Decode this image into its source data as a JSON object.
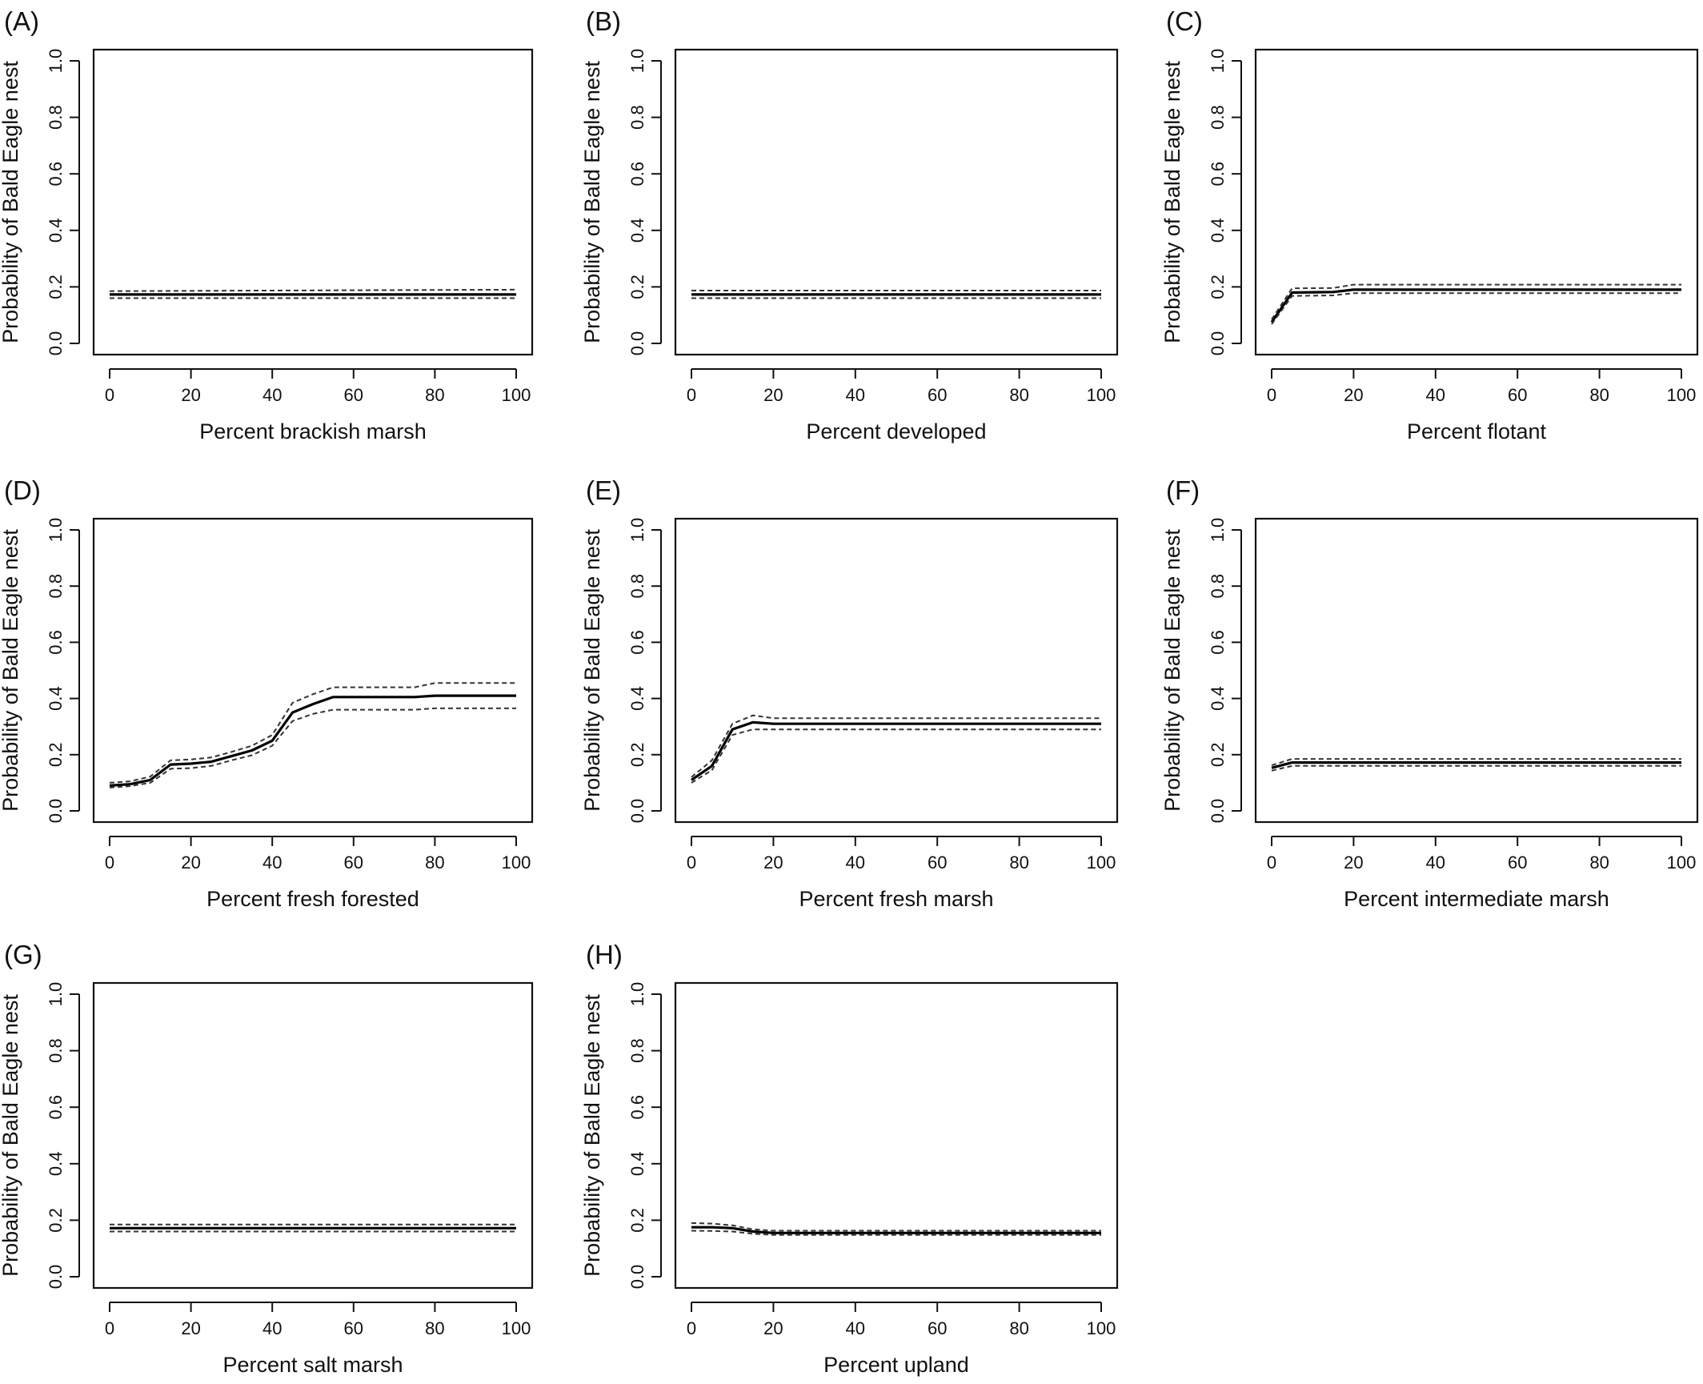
{
  "chart_data": [
    {
      "panel": "(A)",
      "type": "line",
      "xlabel": "Percent brackish marsh",
      "ylabel": "Probability of Bald Eagle nest",
      "xlim": [
        0,
        100
      ],
      "ylim": [
        0,
        1
      ],
      "xticks": [
        0,
        20,
        40,
        60,
        80,
        100
      ],
      "yticks": [
        "0.0",
        "0.2",
        "0.4",
        "0.6",
        "0.8",
        "1.0"
      ],
      "grid": false,
      "x": [
        0,
        100
      ],
      "series": [
        {
          "role": "estimate",
          "values": [
            0.173,
            0.173
          ]
        },
        {
          "role": "upper",
          "values": [
            0.185,
            0.19
          ]
        },
        {
          "role": "lower",
          "values": [
            0.16,
            0.16
          ]
        }
      ]
    },
    {
      "panel": "(B)",
      "type": "line",
      "xlabel": "Percent developed",
      "ylabel": "Probability of Bald Eagle nest",
      "xlim": [
        0,
        100
      ],
      "ylim": [
        0,
        1
      ],
      "xticks": [
        0,
        20,
        40,
        60,
        80,
        100
      ],
      "yticks": [
        "0.0",
        "0.2",
        "0.4",
        "0.6",
        "0.8",
        "1.0"
      ],
      "grid": false,
      "x": [
        0,
        100
      ],
      "series": [
        {
          "role": "estimate",
          "values": [
            0.173,
            0.173
          ]
        },
        {
          "role": "upper",
          "values": [
            0.187,
            0.187
          ]
        },
        {
          "role": "lower",
          "values": [
            0.16,
            0.16
          ]
        }
      ]
    },
    {
      "panel": "(C)",
      "type": "line",
      "xlabel": "Percent flotant",
      "ylabel": "Probability of Bald Eagle nest",
      "xlim": [
        0,
        100
      ],
      "ylim": [
        0,
        1
      ],
      "xticks": [
        0,
        20,
        40,
        60,
        80,
        100
      ],
      "yticks": [
        "0.0",
        "0.2",
        "0.4",
        "0.6",
        "0.8",
        "1.0"
      ],
      "grid": false,
      "x": [
        0,
        5,
        15,
        20,
        100
      ],
      "series": [
        {
          "role": "estimate",
          "values": [
            0.075,
            0.18,
            0.182,
            0.19,
            0.19
          ]
        },
        {
          "role": "upper",
          "values": [
            0.085,
            0.195,
            0.196,
            0.208,
            0.208
          ]
        },
        {
          "role": "lower",
          "values": [
            0.068,
            0.168,
            0.17,
            0.178,
            0.178
          ]
        }
      ]
    },
    {
      "panel": "(D)",
      "type": "line",
      "xlabel": "Percent fresh forested",
      "ylabel": "Probability of Bald Eagle nest",
      "xlim": [
        0,
        100
      ],
      "ylim": [
        0,
        1
      ],
      "xticks": [
        0,
        20,
        40,
        60,
        80,
        100
      ],
      "yticks": [
        "0.0",
        "0.2",
        "0.4",
        "0.6",
        "0.8",
        "1.0"
      ],
      "grid": false,
      "x": [
        0,
        5,
        10,
        15,
        20,
        25,
        30,
        35,
        40,
        45,
        50,
        55,
        60,
        65,
        70,
        75,
        80,
        85,
        90,
        95,
        100
      ],
      "series": [
        {
          "role": "estimate",
          "values": [
            0.09,
            0.095,
            0.11,
            0.165,
            0.168,
            0.175,
            0.195,
            0.215,
            0.25,
            0.35,
            0.38,
            0.405,
            0.405,
            0.405,
            0.405,
            0.405,
            0.41,
            0.41,
            0.41,
            0.41,
            0.41
          ]
        },
        {
          "role": "upper",
          "values": [
            0.1,
            0.105,
            0.122,
            0.18,
            0.183,
            0.19,
            0.21,
            0.232,
            0.27,
            0.385,
            0.415,
            0.44,
            0.44,
            0.44,
            0.44,
            0.44,
            0.455,
            0.455,
            0.455,
            0.455,
            0.455
          ]
        },
        {
          "role": "lower",
          "values": [
            0.083,
            0.088,
            0.1,
            0.15,
            0.152,
            0.16,
            0.18,
            0.198,
            0.232,
            0.32,
            0.345,
            0.36,
            0.36,
            0.36,
            0.36,
            0.36,
            0.365,
            0.365,
            0.365,
            0.365,
            0.365
          ]
        }
      ]
    },
    {
      "panel": "(E)",
      "type": "line",
      "xlabel": "Percent fresh marsh",
      "ylabel": "Probability of Bald Eagle nest",
      "xlim": [
        0,
        100
      ],
      "ylim": [
        0,
        1
      ],
      "xticks": [
        0,
        20,
        40,
        60,
        80,
        100
      ],
      "yticks": [
        "0.0",
        "0.2",
        "0.4",
        "0.6",
        "0.8",
        "1.0"
      ],
      "grid": false,
      "x": [
        0,
        5,
        10,
        15,
        20,
        100
      ],
      "series": [
        {
          "role": "estimate",
          "values": [
            0.11,
            0.16,
            0.29,
            0.315,
            0.31,
            0.31
          ]
        },
        {
          "role": "upper",
          "values": [
            0.12,
            0.18,
            0.31,
            0.34,
            0.33,
            0.33
          ]
        },
        {
          "role": "lower",
          "values": [
            0.1,
            0.145,
            0.27,
            0.29,
            0.29,
            0.29
          ]
        }
      ]
    },
    {
      "panel": "(F)",
      "type": "line",
      "xlabel": "Percent intermediate marsh",
      "ylabel": "Probability of Bald Eagle nest",
      "xlim": [
        0,
        100
      ],
      "ylim": [
        0,
        1
      ],
      "xticks": [
        0,
        20,
        40,
        60,
        80,
        100
      ],
      "yticks": [
        "0.0",
        "0.2",
        "0.4",
        "0.6",
        "0.8",
        "1.0"
      ],
      "grid": false,
      "x": [
        0,
        5,
        100
      ],
      "series": [
        {
          "role": "estimate",
          "values": [
            0.153,
            0.172,
            0.172
          ]
        },
        {
          "role": "upper",
          "values": [
            0.162,
            0.185,
            0.185
          ]
        },
        {
          "role": "lower",
          "values": [
            0.143,
            0.16,
            0.16
          ]
        }
      ]
    },
    {
      "panel": "(G)",
      "type": "line",
      "xlabel": "Percent salt marsh",
      "ylabel": "Probability of Bald Eagle nest",
      "xlim": [
        0,
        100
      ],
      "ylim": [
        0,
        1
      ],
      "xticks": [
        0,
        20,
        40,
        60,
        80,
        100
      ],
      "yticks": [
        "0.0",
        "0.2",
        "0.4",
        "0.6",
        "0.8",
        "1.0"
      ],
      "grid": false,
      "x": [
        0,
        100
      ],
      "series": [
        {
          "role": "estimate",
          "values": [
            0.172,
            0.172
          ]
        },
        {
          "role": "upper",
          "values": [
            0.185,
            0.185
          ]
        },
        {
          "role": "lower",
          "values": [
            0.16,
            0.16
          ]
        }
      ]
    },
    {
      "panel": "(H)",
      "type": "line",
      "xlabel": "Percent upland",
      "ylabel": "Probability of Bald Eagle nest",
      "xlim": [
        0,
        100
      ],
      "ylim": [
        0,
        1
      ],
      "xticks": [
        0,
        20,
        40,
        60,
        80,
        100
      ],
      "yticks": [
        "0.0",
        "0.2",
        "0.4",
        "0.6",
        "0.8",
        "1.0"
      ],
      "grid": false,
      "x": [
        0,
        5,
        10,
        15,
        20,
        100
      ],
      "series": [
        {
          "role": "estimate",
          "values": [
            0.175,
            0.175,
            0.172,
            0.16,
            0.155,
            0.155
          ]
        },
        {
          "role": "upper",
          "values": [
            0.19,
            0.188,
            0.182,
            0.168,
            0.163,
            0.163
          ]
        },
        {
          "role": "lower",
          "values": [
            0.163,
            0.162,
            0.16,
            0.152,
            0.148,
            0.148
          ]
        }
      ]
    }
  ]
}
